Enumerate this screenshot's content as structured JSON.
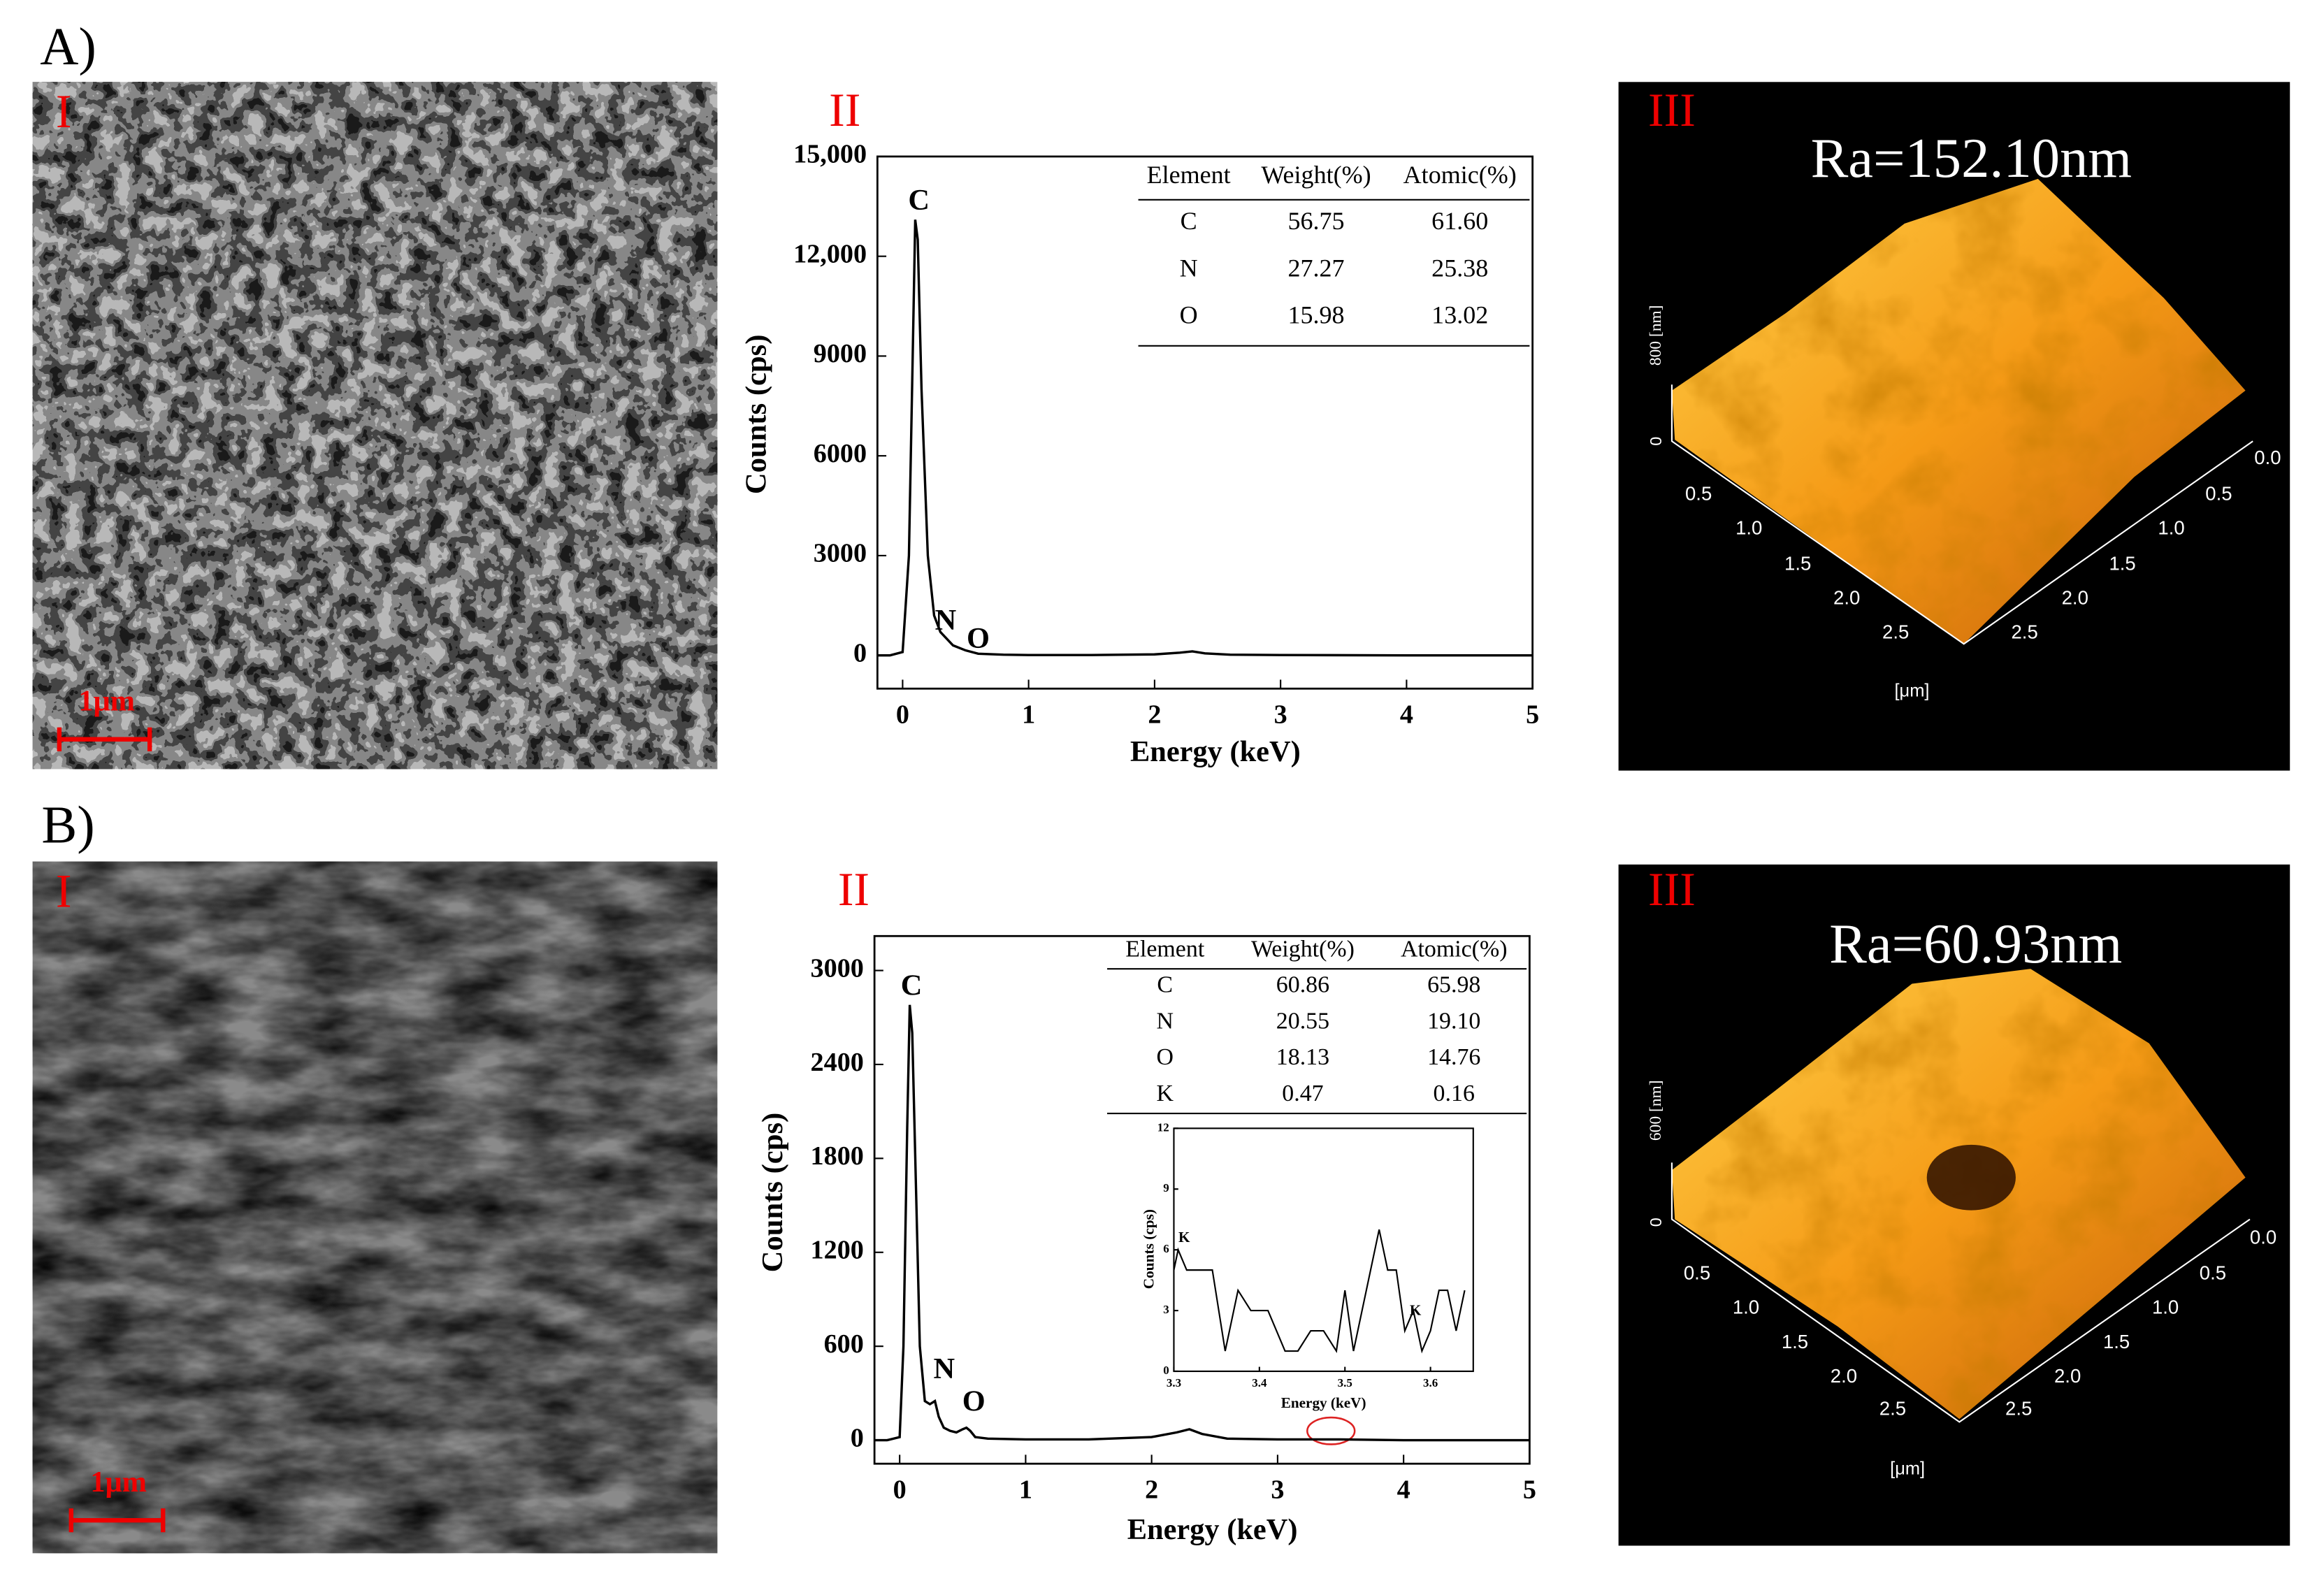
{
  "chart_data": [
    {
      "type": "line",
      "x_label": "Energy (keV)",
      "y_label": "Counts (cps)",
      "color": "#000000",
      "x": [
        -0.2,
        -0.1,
        0,
        0.05,
        0.08,
        0.1,
        0.12,
        0.15,
        0.2,
        0.25,
        0.3,
        0.4,
        0.5,
        0.6,
        0.8,
        1,
        1.5,
        2,
        2.2,
        2.3,
        2.4,
        2.6,
        3,
        4,
        5
      ],
      "values": [
        0,
        0,
        100,
        3000,
        9000,
        13100,
        12500,
        8000,
        3000,
        1200,
        700,
        300,
        150,
        50,
        20,
        10,
        10,
        30,
        80,
        120,
        60,
        20,
        10,
        0,
        0
      ],
      "xlim": [
        -0.2,
        5
      ],
      "ylim": [
        -1000,
        15000
      ],
      "xticks": [
        0,
        1,
        2,
        3,
        4,
        5
      ],
      "yticks": [
        0,
        3000,
        6000,
        9000,
        {
          "value": 12000,
          "label": "12,000"
        },
        {
          "value": 15000,
          "label": "15,000"
        }
      ],
      "annotations": [
        "C",
        "N",
        "O"
      ],
      "table": {
        "columns": [
          "Element",
          "Weight(%)",
          "Atomic(%)"
        ],
        "rows": [
          [
            "C",
            "56.75",
            "61.60"
          ],
          [
            "N",
            "27.27",
            "25.38"
          ],
          [
            "O",
            "15.98",
            "13.02"
          ]
        ]
      }
    },
    {
      "type": "line",
      "x_label": "Energy (keV)",
      "y_label": "Counts (cps)",
      "color": "#000000",
      "x": [
        -0.2,
        -0.1,
        0,
        0.03,
        0.06,
        0.08,
        0.1,
        0.13,
        0.16,
        0.2,
        0.24,
        0.28,
        0.31,
        0.35,
        0.4,
        0.45,
        0.5,
        0.53,
        0.56,
        0.6,
        0.7,
        1,
        1.5,
        2,
        2.2,
        2.3,
        2.4,
        2.6,
        3,
        3.5,
        4,
        4.5,
        5
      ],
      "values": [
        0,
        0,
        20,
        600,
        2000,
        2780,
        2600,
        1600,
        600,
        250,
        230,
        250,
        150,
        80,
        60,
        50,
        70,
        80,
        60,
        20,
        10,
        5,
        5,
        20,
        50,
        70,
        40,
        10,
        5,
        5,
        0,
        0,
        0
      ],
      "xlim": [
        -0.2,
        5
      ],
      "ylim": [
        -150,
        3220
      ],
      "xticks": [
        0,
        1,
        2,
        3,
        4,
        5
      ],
      "yticks": [
        0,
        600,
        1200,
        1800,
        2400,
        3000
      ],
      "annotations": [
        "C",
        "N",
        "O"
      ],
      "table": {
        "columns": [
          "Element",
          "Weight(%)",
          "Atomic(%)"
        ],
        "rows": [
          [
            "C",
            "60.86",
            "65.98"
          ],
          [
            "N",
            "20.55",
            "19.10"
          ],
          [
            "O",
            "18.13",
            "14.76"
          ],
          [
            "K",
            "0.47",
            "0.16"
          ]
        ]
      }
    },
    {
      "type": "line",
      "x_label": "Energy (keV)",
      "y_label": "Counts (cps)",
      "color": "#000000",
      "x": [
        3.3,
        3.305,
        3.315,
        3.33,
        3.345,
        3.36,
        3.375,
        3.39,
        3.41,
        3.43,
        3.445,
        3.46,
        3.475,
        3.49,
        3.5,
        3.51,
        3.525,
        3.54,
        3.55,
        3.56,
        3.57,
        3.58,
        3.59,
        3.6,
        3.61,
        3.62,
        3.63,
        3.64
      ],
      "values": [
        5,
        6,
        5,
        5,
        5,
        1,
        4,
        3,
        3,
        1,
        1,
        2,
        2,
        1,
        4,
        1,
        4,
        7,
        5,
        5,
        2,
        3,
        1,
        2,
        4,
        4,
        2,
        4
      ],
      "xlim": [
        3.3,
        3.65
      ],
      "ylim": [
        0,
        12
      ],
      "xticks": [
        3.3,
        3.4,
        3.5,
        3.6
      ],
      "yticks": [
        0,
        3,
        6,
        9,
        12
      ],
      "annotations": [
        "K",
        "K"
      ]
    }
  ],
  "panels": [
    {
      "label": "A)",
      "sem": {
        "label": "I",
        "scale_bar": "1μm"
      },
      "eds_label": "II",
      "afm": {
        "label": "III",
        "ra": "Ra=152.10nm",
        "z_label": "800 [nm]",
        "z_zero": "0",
        "left_ticks": [
          "0.5",
          "1.0",
          "1.5",
          "2.0",
          "2.5"
        ],
        "right_ticks": [
          "0.0",
          "0.5",
          "1.0",
          "1.5",
          "2.0",
          "2.5"
        ],
        "unit": "[μm]"
      }
    },
    {
      "label": "B)",
      "sem": {
        "label": "I",
        "scale_bar": "1μm"
      },
      "eds_label": "II",
      "afm": {
        "label": "III",
        "ra": "Ra=60.93nm",
        "z_label": "600 [nm]",
        "z_zero": "0",
        "left_ticks": [
          "0.5",
          "1.0",
          "1.5",
          "2.0",
          "2.5"
        ],
        "right_ticks": [
          "0.0",
          "0.5",
          "1.0",
          "1.5",
          "2.0",
          "2.5"
        ],
        "unit": "[μm]"
      }
    }
  ]
}
